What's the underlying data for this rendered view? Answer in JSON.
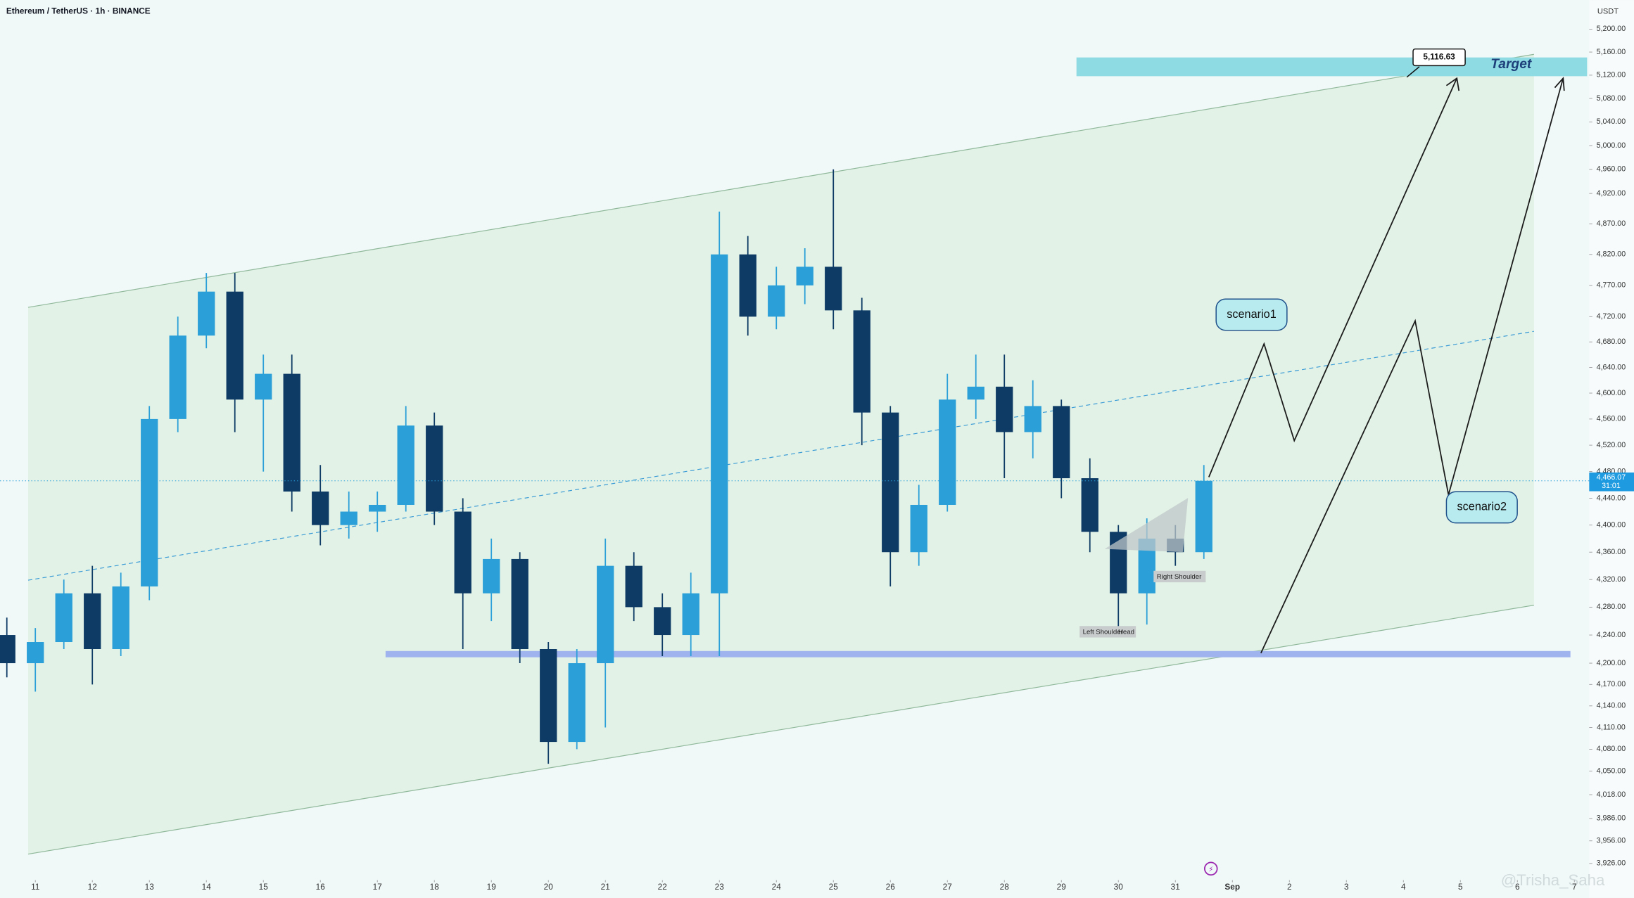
{
  "header": {
    "title": "Ethereum / TetherUS · 1h · BINANCE"
  },
  "chart_data": {
    "type": "candlestick",
    "x": [
      10.5,
      11,
      11.5,
      12,
      12.5,
      13,
      13.5,
      14,
      14.5,
      15,
      15.5,
      16,
      16.5,
      17,
      17.5,
      18,
      18.5,
      19,
      19.5,
      20,
      20.5,
      21,
      21.5,
      22,
      22.5,
      23,
      23.5,
      24,
      24.5,
      25,
      25.5,
      26,
      26.5,
      27,
      27.5,
      28,
      28.5,
      29,
      29.5,
      30,
      30.5,
      31,
      31.5
    ],
    "open": [
      4240,
      4200,
      4230,
      4300,
      4220,
      4310,
      4560,
      4690,
      4760,
      4590,
      4630,
      4450,
      4400,
      4420,
      4430,
      4550,
      4420,
      4300,
      4350,
      4220,
      4090,
      4200,
      4340,
      4280,
      4240,
      4300,
      4820,
      4720,
      4770,
      4800,
      4730,
      4570,
      4360,
      4430,
      4590,
      4610,
      4540,
      4580,
      4470,
      4390,
      4300,
      4380,
      4360
    ],
    "high": [
      4265,
      4250,
      4320,
      4340,
      4330,
      4580,
      4720,
      4790,
      4790,
      4660,
      4660,
      4490,
      4450,
      4450,
      4580,
      4570,
      4440,
      4380,
      4360,
      4230,
      4220,
      4380,
      4360,
      4300,
      4330,
      4890,
      4850,
      4800,
      4830,
      4960,
      4750,
      4580,
      4460,
      4630,
      4660,
      4660,
      4620,
      4590,
      4500,
      4400,
      4410,
      4400,
      4490
    ],
    "low": [
      4180,
      4160,
      4220,
      4170,
      4210,
      4290,
      4540,
      4670,
      4540,
      4480,
      4420,
      4370,
      4380,
      4390,
      4420,
      4400,
      4220,
      4260,
      4200,
      4060,
      4080,
      4110,
      4260,
      4210,
      4210,
      4210,
      4690,
      4700,
      4740,
      4700,
      4520,
      4310,
      4340,
      4420,
      4560,
      4470,
      4500,
      4440,
      4360,
      4250,
      4255,
      4340,
      4350
    ],
    "close": [
      4200,
      4230,
      4300,
      4220,
      4310,
      4560,
      4690,
      4760,
      4590,
      4630,
      4450,
      4400,
      4420,
      4430,
      4550,
      4420,
      4300,
      4350,
      4220,
      4090,
      4200,
      4340,
      4280,
      4240,
      4300,
      4820,
      4720,
      4770,
      4800,
      4730,
      4570,
      4360,
      4430,
      4590,
      4610,
      4540,
      4580,
      4470,
      4390,
      4300,
      4380,
      4360,
      4466.07
    ],
    "up_color": "#2a9fd8",
    "down_color": "#0d3b66",
    "log_scale": true,
    "ylim": [
      3904,
      5251
    ],
    "yticks": [
      {
        "value": 5200,
        "label": "5,200.00"
      },
      {
        "value": 5160,
        "label": "5,160.00"
      },
      {
        "value": 5120,
        "label": "5,120.00"
      },
      {
        "value": 5080,
        "label": "5,080.00"
      },
      {
        "value": 5040,
        "label": "5,040.00"
      },
      {
        "value": 5000,
        "label": "5,000.00"
      },
      {
        "value": 4960,
        "label": "4,960.00"
      },
      {
        "value": 4920,
        "label": "4,920.00"
      },
      {
        "value": 4870,
        "label": "4,870.00"
      },
      {
        "value": 4820,
        "label": "4,820.00"
      },
      {
        "value": 4770,
        "label": "4,770.00"
      },
      {
        "value": 4720,
        "label": "4,720.00"
      },
      {
        "value": 4680,
        "label": "4,680.00"
      },
      {
        "value": 4640,
        "label": "4,640.00"
      },
      {
        "value": 4600,
        "label": "4,600.00"
      },
      {
        "value": 4560,
        "label": "4,560.00"
      },
      {
        "value": 4520,
        "label": "4,520.00"
      },
      {
        "value": 4480,
        "label": "4,480.00"
      },
      {
        "value": 4440,
        "label": "4,440.00"
      },
      {
        "value": 4400,
        "label": "4,400.00"
      },
      {
        "value": 4360,
        "label": "4,360.00"
      },
      {
        "value": 4320,
        "label": "4,320.00"
      },
      {
        "value": 4280,
        "label": "4,280.00"
      },
      {
        "value": 4240,
        "label": "4,240.00"
      },
      {
        "value": 4200,
        "label": "4,200.00"
      },
      {
        "value": 4170,
        "label": "4,170.00"
      },
      {
        "value": 4140,
        "label": "4,140.00"
      },
      {
        "value": 4110,
        "label": "4,110.00"
      },
      {
        "value": 4080,
        "label": "4,080.00"
      },
      {
        "value": 4050,
        "label": "4,050.00"
      },
      {
        "value": 4018,
        "label": "4,018.00"
      },
      {
        "value": 3986,
        "label": "3,986.00"
      },
      {
        "value": 3956,
        "label": "3,956.00"
      },
      {
        "value": 3926,
        "label": "3,926.00"
      }
    ],
    "xlim": [
      10.38,
      38.26
    ],
    "xticks": [
      11,
      12,
      13,
      14,
      15,
      16,
      17,
      18,
      19,
      20,
      21,
      22,
      23,
      24,
      25,
      26,
      27,
      28,
      29,
      30,
      31,
      {
        "value": 32,
        "label": "Sep"
      },
      {
        "value": 33,
        "label": "2"
      },
      {
        "value": 34,
        "label": "3"
      },
      {
        "value": 35,
        "label": "4"
      },
      {
        "value": 36,
        "label": "5"
      },
      {
        "value": 37,
        "label": "6"
      },
      {
        "value": 38,
        "label": "7"
      }
    ],
    "y_axis_unit": "USDT",
    "last_price": {
      "value": 4466.07,
      "label": "4,466.07"
    },
    "countdown": "31:01",
    "annotations": {
      "target": "Target",
      "target_price": {
        "value": 5116.63,
        "label": "5,116.63"
      },
      "scenario1": "scenario1",
      "scenario2": "scenario2",
      "left_shoulder": "Left Shoulder",
      "head": "Head",
      "right_shoulder": "Right Shoulder"
    },
    "watermark": "@Trisha_Saha"
  }
}
